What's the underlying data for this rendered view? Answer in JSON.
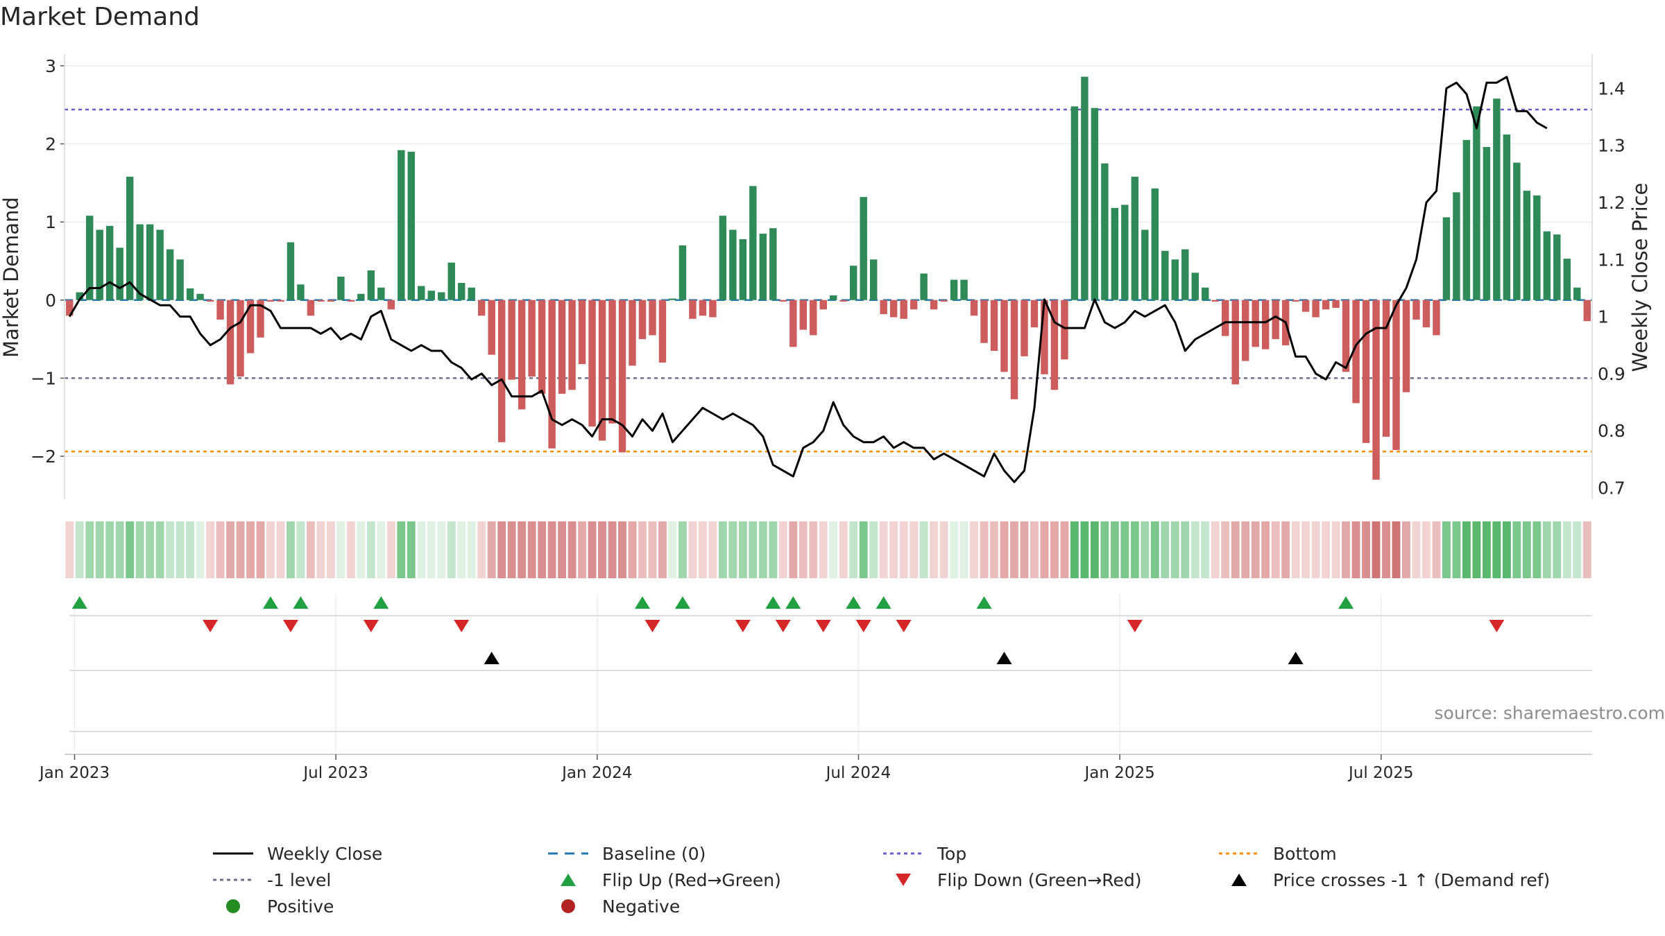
{
  "chart_data": {
    "type": "bar",
    "title": "Market Demand",
    "source": "source: sharemaestro.com",
    "ylabel_left": "Market Demand",
    "ylabel_right": "Weekly Close Price",
    "ylim_left": [
      -2.55,
      3.15
    ],
    "ylim_right": [
      0.68,
      1.46
    ],
    "yticks_left": [
      3,
      2,
      1,
      0,
      -1,
      -2
    ],
    "yticks_left_labels": [
      "3",
      "2",
      "1",
      "0",
      "−1",
      "−2"
    ],
    "yticks_right": [
      1.4,
      1.3,
      1.2,
      1.1,
      1.0,
      0.9,
      0.8,
      0.7
    ],
    "yticks_right_labels": [
      "1.4",
      "1.3",
      "1.2",
      "1.1",
      "1",
      "0.9",
      "0.8",
      "0.7"
    ],
    "x_start": "2022-12-26",
    "xtick_weeks": [
      1,
      27,
      53,
      79,
      105,
      131
    ],
    "xtick_labels": [
      "Jan 2023",
      "Jul 2023",
      "Jan 2024",
      "Jul 2024",
      "Jan 2025",
      "Jul 2025"
    ],
    "reference_lines": {
      "baseline": 0,
      "top": 2.44,
      "minus_one": -1,
      "bottom": -1.94
    },
    "demand": [
      -0.2,
      0.1,
      1.08,
      0.9,
      0.95,
      0.67,
      1.58,
      0.97,
      0.97,
      0.9,
      0.65,
      0.52,
      0.15,
      0.08,
      -0.02,
      -0.25,
      -1.08,
      -0.98,
      -0.68,
      -0.48,
      -0.02,
      -0.02,
      0.74,
      0.2,
      -0.2,
      -0.02,
      -0.02,
      0.3,
      -0.02,
      0.08,
      0.38,
      0.16,
      -0.12,
      1.92,
      1.9,
      0.18,
      0.12,
      0.1,
      0.48,
      0.22,
      0.16,
      -0.2,
      -0.7,
      -1.82,
      -1.02,
      -1.4,
      -0.98,
      -1.2,
      -1.9,
      -1.2,
      -1.15,
      -0.82,
      -1.62,
      -1.8,
      -1.58,
      -1.95,
      -0.84,
      -0.5,
      -0.45,
      -0.8,
      0.02,
      0.7,
      -0.24,
      -0.2,
      -0.22,
      1.08,
      0.9,
      0.78,
      1.46,
      0.85,
      0.92,
      -0.02,
      -0.6,
      -0.38,
      -0.45,
      -0.12,
      0.06,
      -0.02,
      0.44,
      1.32,
      0.52,
      -0.18,
      -0.22,
      -0.24,
      -0.12,
      0.34,
      -0.12,
      -0.02,
      0.26,
      0.26,
      -0.2,
      -0.55,
      -0.65,
      -0.92,
      -1.27,
      -0.72,
      -0.35,
      -0.95,
      -1.15,
      -0.76,
      2.48,
      2.86,
      2.46,
      1.75,
      1.18,
      1.22,
      1.58,
      0.9,
      1.43,
      0.63,
      0.52,
      0.65,
      0.35,
      0.16,
      -0.02,
      -0.46,
      -1.08,
      -0.78,
      -0.6,
      -0.63,
      -0.5,
      -0.58,
      -0.02,
      -0.15,
      -0.22,
      -0.12,
      -0.1,
      -0.92,
      -1.32,
      -1.83,
      -2.3,
      -1.75,
      -1.92,
      -1.18,
      -0.25,
      -0.35,
      -0.45,
      1.06,
      1.38,
      2.05,
      2.48,
      1.96,
      2.58,
      2.12,
      1.76,
      1.4,
      1.34,
      0.88,
      0.84,
      0.53,
      0.16,
      -0.27
    ],
    "close": [
      1.0,
      1.03,
      1.05,
      1.05,
      1.06,
      1.05,
      1.06,
      1.04,
      1.03,
      1.02,
      1.02,
      1.0,
      1.0,
      0.97,
      0.95,
      0.96,
      0.98,
      0.99,
      1.02,
      1.02,
      1.01,
      0.98,
      0.98,
      0.98,
      0.98,
      0.97,
      0.98,
      0.96,
      0.97,
      0.96,
      1.0,
      1.01,
      0.96,
      0.95,
      0.94,
      0.95,
      0.94,
      0.94,
      0.92,
      0.91,
      0.89,
      0.9,
      0.88,
      0.89,
      0.86,
      0.86,
      0.86,
      0.87,
      0.82,
      0.81,
      0.82,
      0.81,
      0.79,
      0.82,
      0.82,
      0.81,
      0.79,
      0.82,
      0.8,
      0.83,
      0.78,
      0.8,
      0.82,
      0.84,
      0.83,
      0.82,
      0.83,
      0.82,
      0.81,
      0.79,
      0.74,
      0.73,
      0.72,
      0.77,
      0.78,
      0.8,
      0.85,
      0.81,
      0.79,
      0.78,
      0.78,
      0.79,
      0.77,
      0.78,
      0.77,
      0.77,
      0.75,
      0.76,
      0.75,
      0.74,
      0.73,
      0.72,
      0.76,
      0.73,
      0.71,
      0.73,
      0.84,
      1.03,
      0.99,
      0.98,
      0.98,
      0.98,
      1.03,
      0.99,
      0.98,
      0.99,
      1.01,
      1.0,
      1.01,
      1.02,
      0.99,
      0.94,
      0.96,
      0.97,
      0.98,
      0.99,
      0.99,
      0.99,
      0.99,
      0.99,
      1.0,
      0.99,
      0.93,
      0.93,
      0.9,
      0.89,
      0.92,
      0.91,
      0.95,
      0.97,
      0.98,
      0.98,
      1.02,
      1.05,
      1.1,
      1.2,
      1.22,
      1.4,
      1.41,
      1.39,
      1.33,
      1.41,
      1.41,
      1.42,
      1.36,
      1.36,
      1.34,
      1.33
    ],
    "band_intensity": [
      1,
      2,
      3,
      3,
      3,
      3,
      4,
      3,
      3,
      3,
      2,
      2,
      2,
      1,
      1,
      2,
      3,
      3,
      3,
      3,
      1,
      1,
      3,
      2,
      2,
      1,
      1,
      1,
      1,
      1,
      2,
      1,
      1,
      4,
      4,
      1,
      1,
      1,
      2,
      1,
      1,
      1,
      3,
      4,
      4,
      4,
      4,
      4,
      4,
      4,
      4,
      3,
      4,
      4,
      4,
      4,
      3,
      2,
      2,
      3,
      1,
      3,
      1,
      1,
      1,
      3,
      3,
      3,
      3,
      3,
      3,
      1,
      3,
      2,
      2,
      1,
      1,
      1,
      2,
      4,
      2,
      1,
      1,
      1,
      1,
      2,
      1,
      1,
      1,
      1,
      1,
      2,
      2,
      3,
      3,
      3,
      2,
      3,
      3,
      3,
      5,
      5,
      5,
      4,
      4,
      4,
      4,
      3,
      4,
      3,
      3,
      3,
      2,
      2,
      1,
      2,
      3,
      3,
      3,
      3,
      2,
      3,
      1,
      1,
      1,
      1,
      1,
      3,
      4,
      4,
      5,
      4,
      5,
      3,
      1,
      1,
      2,
      4,
      4,
      5,
      5,
      5,
      5,
      5,
      4,
      4,
      4,
      3,
      3,
      2,
      2,
      2
    ],
    "flip_up_weeks": [
      1,
      20,
      23,
      31,
      57,
      61,
      70,
      72,
      78,
      81,
      91,
      127
    ],
    "flip_down_weeks": [
      14,
      22,
      30,
      39,
      58,
      67,
      71,
      75,
      79,
      83,
      106,
      142
    ],
    "price_cross_weeks": [
      42,
      93,
      122
    ],
    "legend": [
      {
        "label": "Weekly Close",
        "icon": "solid-line-icon"
      },
      {
        "label": "Baseline (0)",
        "icon": "dashed-line-icon"
      },
      {
        "label": "Top",
        "icon": "dotted-line-icon"
      },
      {
        "label": "Bottom",
        "icon": "dotted-line-icon"
      },
      {
        "label": "-1 level",
        "icon": "dotted-line-icon"
      },
      {
        "label": "Flip Up (Red→Green)",
        "icon": "triangle-up-icon"
      },
      {
        "label": "Flip Down (Green→Red)",
        "icon": "triangle-down-icon"
      },
      {
        "label": "Price crosses -1 ↑ (Demand ref)",
        "icon": "triangle-up-icon"
      },
      {
        "label": "Positive",
        "icon": "circle-icon"
      },
      {
        "label": "Negative",
        "icon": "circle-icon"
      }
    ],
    "colors": {
      "positive_bar": "#2e8b57",
      "negative_bar": "#cd5c5c",
      "close_line": "#000000",
      "baseline": "#1f77b4",
      "top": "#6a5acd",
      "minus_one": "#6e6e8a",
      "bottom": "#ff8c00",
      "flip_up": "#20a040",
      "flip_down": "#d62728",
      "price_cross": "#000000",
      "positive_dot": "#228b22",
      "negative_dot": "#b22222",
      "band_green": [
        "#dff1e3",
        "#c2e5cb",
        "#9fd6ab",
        "#7cc78c",
        "#5ab86e"
      ],
      "band_red": [
        "#f2d3d3",
        "#ebbebe",
        "#e3a8a8",
        "#d98f8f",
        "#cf7575"
      ]
    }
  }
}
